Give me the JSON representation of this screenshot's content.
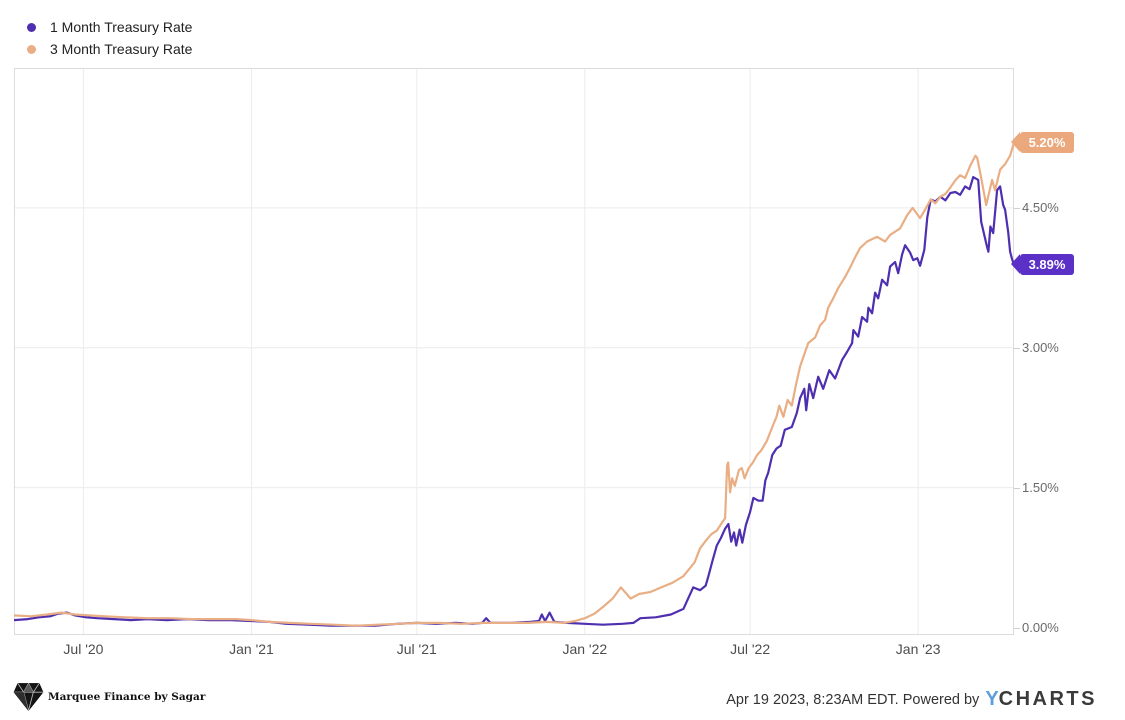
{
  "footer": {
    "timestamp": "Apr 19 2023, 8:23AM EDT. Powered by",
    "logo": {
      "y": "Y",
      "charts": "CHARTS"
    },
    "brand": "Marquee Finance by Sagar"
  },
  "chart_data": {
    "type": "line",
    "title": "",
    "xlabel": "",
    "ylabel": "",
    "x_unit": "months since 2020-04-15",
    "x_start_date": "2020-04-15",
    "xlim": [
      0,
      36
    ],
    "ylim": [
      -0.08,
      6.0
    ],
    "grid": true,
    "legend_position": "top-left",
    "colors": {
      "grid": "#ececec",
      "plot_border": "#dcdcdc",
      "x_tick_text": "#4d4d4d",
      "y_tick_text": "#6a6a6a"
    },
    "x_ticks": [
      {
        "t": 2.5,
        "label": "Jul '20"
      },
      {
        "t": 8.55,
        "label": "Jan '21"
      },
      {
        "t": 14.5,
        "label": "Jul '21"
      },
      {
        "t": 20.55,
        "label": "Jan '22"
      },
      {
        "t": 26.5,
        "label": "Jul '22"
      },
      {
        "t": 32.55,
        "label": "Jan '23"
      }
    ],
    "y_ticks": [
      {
        "v": 0.0,
        "label": "0.00%"
      },
      {
        "v": 1.5,
        "label": "1.50%"
      },
      {
        "v": 3.0,
        "label": "3.00%"
      },
      {
        "v": 4.5,
        "label": "4.50%"
      }
    ],
    "end_labels": [
      {
        "series": "3 Month Treasury Rate",
        "value": 5.2,
        "label": "5.20%",
        "color": "#eba87c"
      },
      {
        "series": "1 Month Treasury Rate",
        "value": 3.89,
        "label": "3.89%",
        "color": "#5b30c7"
      }
    ],
    "series": [
      {
        "name": "1 Month Treasury Rate",
        "color": "#4e2fb0",
        "points": [
          [
            0,
            0.08
          ],
          [
            0.5,
            0.09
          ],
          [
            0.9,
            0.11
          ],
          [
            1.3,
            0.12
          ],
          [
            1.6,
            0.15
          ],
          [
            1.9,
            0.16
          ],
          [
            2.2,
            0.13
          ],
          [
            2.6,
            0.11
          ],
          [
            3.0,
            0.1
          ],
          [
            3.6,
            0.09
          ],
          [
            4.2,
            0.08
          ],
          [
            4.8,
            0.09
          ],
          [
            5.5,
            0.08
          ],
          [
            6.2,
            0.09
          ],
          [
            7.0,
            0.08
          ],
          [
            7.8,
            0.08
          ],
          [
            8.55,
            0.07
          ],
          [
            9.2,
            0.06
          ],
          [
            9.8,
            0.04
          ],
          [
            10.6,
            0.03
          ],
          [
            11.4,
            0.02
          ],
          [
            12.2,
            0.02
          ],
          [
            13.0,
            0.02
          ],
          [
            13.8,
            0.04
          ],
          [
            14.5,
            0.05
          ],
          [
            15.2,
            0.04
          ],
          [
            15.9,
            0.05
          ],
          [
            16.5,
            0.04
          ],
          [
            16.85,
            0.05
          ],
          [
            17.0,
            0.1
          ],
          [
            17.15,
            0.05
          ],
          [
            17.9,
            0.05
          ],
          [
            18.6,
            0.06
          ],
          [
            18.9,
            0.07
          ],
          [
            19.0,
            0.14
          ],
          [
            19.12,
            0.07
          ],
          [
            19.28,
            0.16
          ],
          [
            19.45,
            0.06
          ],
          [
            19.9,
            0.05
          ],
          [
            20.55,
            0.04
          ],
          [
            21.2,
            0.03
          ],
          [
            21.9,
            0.04
          ],
          [
            22.3,
            0.05
          ],
          [
            22.55,
            0.1
          ],
          [
            23.1,
            0.11
          ],
          [
            23.65,
            0.14
          ],
          [
            24.1,
            0.2
          ],
          [
            24.45,
            0.43
          ],
          [
            24.7,
            0.4
          ],
          [
            24.9,
            0.45
          ],
          [
            25.0,
            0.55
          ],
          [
            25.15,
            0.72
          ],
          [
            25.3,
            0.88
          ],
          [
            25.45,
            0.96
          ],
          [
            25.6,
            1.06
          ],
          [
            25.72,
            1.11
          ],
          [
            25.82,
            0.92
          ],
          [
            25.92,
            1.02
          ],
          [
            26.0,
            0.88
          ],
          [
            26.12,
            1.05
          ],
          [
            26.22,
            0.91
          ],
          [
            26.35,
            1.1
          ],
          [
            26.5,
            1.24
          ],
          [
            26.62,
            1.39
          ],
          [
            26.8,
            1.36
          ],
          [
            26.95,
            1.36
          ],
          [
            27.05,
            1.58
          ],
          [
            27.15,
            1.66
          ],
          [
            27.3,
            1.85
          ],
          [
            27.45,
            1.92
          ],
          [
            27.6,
            1.95
          ],
          [
            27.75,
            2.12
          ],
          [
            28.0,
            2.15
          ],
          [
            28.18,
            2.3
          ],
          [
            28.3,
            2.46
          ],
          [
            28.45,
            2.56
          ],
          [
            28.52,
            2.33
          ],
          [
            28.63,
            2.61
          ],
          [
            28.77,
            2.46
          ],
          [
            28.95,
            2.69
          ],
          [
            29.13,
            2.56
          ],
          [
            29.35,
            2.76
          ],
          [
            29.56,
            2.67
          ],
          [
            29.81,
            2.87
          ],
          [
            30.0,
            2.96
          ],
          [
            30.17,
            3.05
          ],
          [
            30.22,
            3.19
          ],
          [
            30.39,
            3.12
          ],
          [
            30.53,
            3.33
          ],
          [
            30.71,
            3.28
          ],
          [
            30.76,
            3.43
          ],
          [
            30.89,
            3.37
          ],
          [
            31.0,
            3.59
          ],
          [
            31.11,
            3.53
          ],
          [
            31.25,
            3.73
          ],
          [
            31.43,
            3.67
          ],
          [
            31.54,
            3.87
          ],
          [
            31.72,
            3.92
          ],
          [
            31.83,
            3.8
          ],
          [
            31.97,
            4.0
          ],
          [
            32.08,
            4.1
          ],
          [
            32.26,
            4.02
          ],
          [
            32.37,
            3.94
          ],
          [
            32.52,
            3.96
          ],
          [
            32.62,
            3.88
          ],
          [
            32.77,
            4.05
          ],
          [
            32.88,
            4.4
          ],
          [
            33.0,
            4.59
          ],
          [
            33.17,
            4.57
          ],
          [
            33.35,
            4.62
          ],
          [
            33.53,
            4.58
          ],
          [
            33.71,
            4.66
          ],
          [
            33.89,
            4.67
          ],
          [
            34.06,
            4.64
          ],
          [
            34.24,
            4.73
          ],
          [
            34.4,
            4.7
          ],
          [
            34.53,
            4.83
          ],
          [
            34.71,
            4.8
          ],
          [
            34.82,
            4.35
          ],
          [
            34.9,
            4.25
          ],
          [
            35.03,
            4.08
          ],
          [
            35.08,
            4.03
          ],
          [
            35.15,
            4.3
          ],
          [
            35.25,
            4.23
          ],
          [
            35.39,
            4.69
          ],
          [
            35.5,
            4.73
          ],
          [
            35.61,
            4.53
          ],
          [
            35.68,
            4.48
          ],
          [
            35.79,
            4.24
          ],
          [
            35.86,
            4.03
          ],
          [
            35.93,
            3.95
          ],
          [
            36.0,
            3.89
          ]
        ]
      },
      {
        "name": "3 Month Treasury Rate",
        "color": "#e9ae84",
        "points": [
          [
            0,
            0.13
          ],
          [
            0.6,
            0.12
          ],
          [
            1.2,
            0.14
          ],
          [
            1.7,
            0.16
          ],
          [
            2.2,
            0.14
          ],
          [
            2.7,
            0.13
          ],
          [
            3.3,
            0.12
          ],
          [
            4.0,
            0.11
          ],
          [
            4.8,
            0.1
          ],
          [
            5.6,
            0.1
          ],
          [
            6.4,
            0.09
          ],
          [
            7.2,
            0.09
          ],
          [
            8.0,
            0.09
          ],
          [
            8.55,
            0.08
          ],
          [
            9.2,
            0.06
          ],
          [
            9.9,
            0.05
          ],
          [
            10.7,
            0.04
          ],
          [
            11.5,
            0.03
          ],
          [
            12.3,
            0.02
          ],
          [
            13.1,
            0.03
          ],
          [
            13.9,
            0.04
          ],
          [
            14.5,
            0.05
          ],
          [
            15.3,
            0.05
          ],
          [
            16.1,
            0.04
          ],
          [
            16.9,
            0.05
          ],
          [
            17.7,
            0.05
          ],
          [
            18.5,
            0.05
          ],
          [
            19.2,
            0.06
          ],
          [
            19.8,
            0.05
          ],
          [
            20.2,
            0.07
          ],
          [
            20.55,
            0.1
          ],
          [
            20.9,
            0.15
          ],
          [
            21.2,
            0.22
          ],
          [
            21.55,
            0.31
          ],
          [
            21.85,
            0.43
          ],
          [
            22.2,
            0.31
          ],
          [
            22.5,
            0.36
          ],
          [
            22.9,
            0.38
          ],
          [
            23.3,
            0.43
          ],
          [
            23.7,
            0.48
          ],
          [
            24.1,
            0.55
          ],
          [
            24.5,
            0.7
          ],
          [
            24.7,
            0.85
          ],
          [
            24.9,
            0.93
          ],
          [
            25.1,
            1.0
          ],
          [
            25.3,
            1.04
          ],
          [
            25.5,
            1.13
          ],
          [
            25.6,
            1.17
          ],
          [
            25.67,
            1.74
          ],
          [
            25.71,
            1.77
          ],
          [
            25.78,
            1.45
          ],
          [
            25.85,
            1.6
          ],
          [
            25.95,
            1.52
          ],
          [
            26.1,
            1.69
          ],
          [
            26.2,
            1.71
          ],
          [
            26.3,
            1.6
          ],
          [
            26.45,
            1.71
          ],
          [
            26.6,
            1.77
          ],
          [
            26.75,
            1.85
          ],
          [
            26.9,
            1.9
          ],
          [
            27.1,
            2.0
          ],
          [
            27.3,
            2.15
          ],
          [
            27.45,
            2.26
          ],
          [
            27.55,
            2.38
          ],
          [
            27.7,
            2.26
          ],
          [
            27.85,
            2.44
          ],
          [
            28.0,
            2.38
          ],
          [
            28.15,
            2.6
          ],
          [
            28.3,
            2.8
          ],
          [
            28.59,
            3.05
          ],
          [
            28.84,
            3.11
          ],
          [
            29.02,
            3.24
          ],
          [
            29.2,
            3.3
          ],
          [
            29.31,
            3.43
          ],
          [
            29.49,
            3.53
          ],
          [
            29.67,
            3.64
          ],
          [
            29.92,
            3.76
          ],
          [
            30.1,
            3.86
          ],
          [
            30.28,
            3.97
          ],
          [
            30.46,
            4.07
          ],
          [
            30.71,
            4.14
          ],
          [
            31.07,
            4.19
          ],
          [
            31.36,
            4.14
          ],
          [
            31.54,
            4.21
          ],
          [
            31.9,
            4.28
          ],
          [
            32.15,
            4.42
          ],
          [
            32.35,
            4.5
          ],
          [
            32.62,
            4.39
          ],
          [
            32.8,
            4.48
          ],
          [
            33.0,
            4.59
          ],
          [
            33.17,
            4.55
          ],
          [
            33.35,
            4.62
          ],
          [
            33.53,
            4.65
          ],
          [
            33.71,
            4.72
          ],
          [
            33.9,
            4.8
          ],
          [
            34.06,
            4.85
          ],
          [
            34.24,
            4.82
          ],
          [
            34.42,
            4.95
          ],
          [
            34.61,
            5.06
          ],
          [
            34.67,
            5.04
          ],
          [
            34.8,
            4.85
          ],
          [
            35.0,
            4.53
          ],
          [
            35.21,
            4.8
          ],
          [
            35.32,
            4.69
          ],
          [
            35.5,
            4.91
          ],
          [
            35.68,
            4.97
          ],
          [
            35.86,
            5.06
          ],
          [
            36.0,
            5.2
          ]
        ]
      }
    ]
  }
}
